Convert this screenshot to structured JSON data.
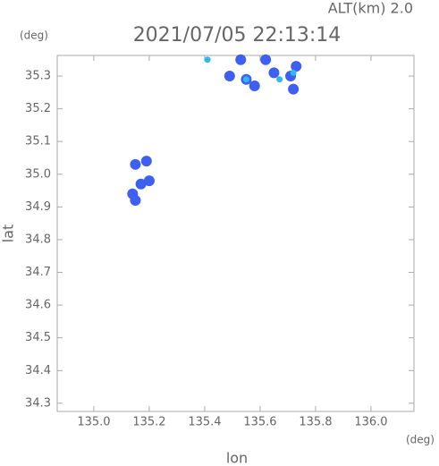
{
  "chart_data": {
    "type": "scatter",
    "title": "2021/07/05 22:13:14",
    "subtitle": "ALT(km)  2.0",
    "x_label": "lon",
    "y_label": "lat",
    "x_unit": "(deg)",
    "y_unit": "(deg)",
    "xlim": [
      134.868,
      136.155
    ],
    "ylim": [
      34.275,
      35.363
    ],
    "xticks": [
      {
        "value": 135,
        "label": "135.0"
      },
      135.2,
      135.4,
      135.6,
      135.8,
      {
        "value": 136,
        "label": "136.0"
      }
    ],
    "yticks": [
      34.3,
      34.4,
      34.5,
      34.6,
      34.7,
      34.8,
      34.9,
      {
        "value": 35,
        "label": "35.0"
      },
      35.1,
      35.2,
      35.3
    ],
    "series": [
      {
        "color": "#3d5ff2",
        "x": [
          135.49,
          135.53,
          135.55,
          135.58,
          135.62,
          135.65,
          135.71,
          135.73,
          135.72,
          135.14,
          135.17,
          135.2,
          135.19,
          135.15,
          135.15
        ],
        "values": [
          35.3,
          35.35,
          35.29,
          35.27,
          35.35,
          35.31,
          35.3,
          35.33,
          35.26,
          34.94,
          34.97,
          34.98,
          35.04,
          35.03,
          34.92
        ]
      },
      {
        "color": "#2fb8ef",
        "x": [
          135.41,
          135.55,
          135.67,
          135.72
        ],
        "values": [
          35.35,
          35.29,
          35.29,
          35.31
        ]
      }
    ]
  }
}
